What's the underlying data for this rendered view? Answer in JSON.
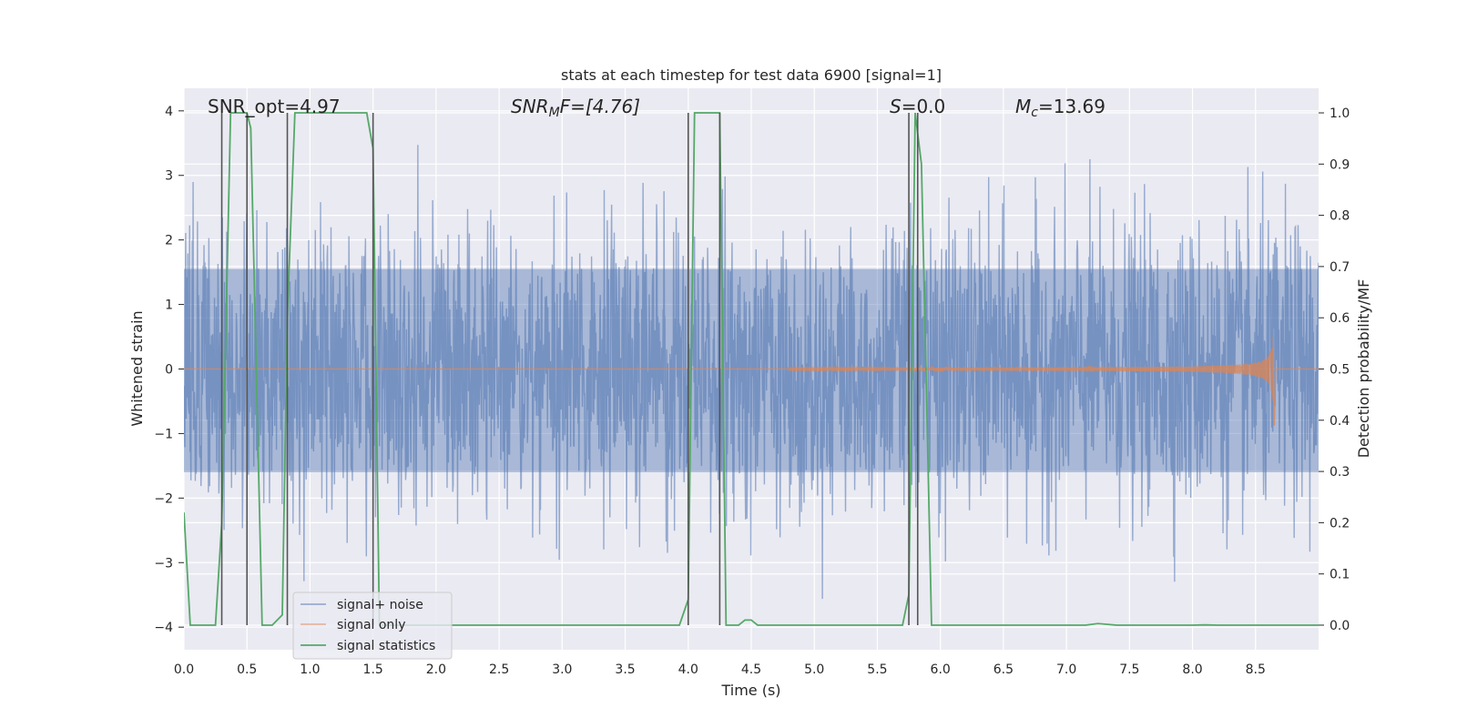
{
  "chart_data": {
    "type": "line",
    "title": "stats at each timestep for test data 6900 [signal=1]",
    "xlabel": "Time (s)",
    "ylabel": "Whitened strain",
    "y2label": "Detection probability/MF",
    "xlim": [
      0.0,
      9.0
    ],
    "ylim": [
      -4.35,
      4.35
    ],
    "y2lim": [
      -0.048,
      1.048
    ],
    "x_ticks": [
      0.0,
      0.5,
      1.0,
      1.5,
      2.0,
      2.5,
      3.0,
      3.5,
      4.0,
      4.5,
      5.0,
      5.5,
      6.0,
      6.5,
      7.0,
      7.5,
      8.0,
      8.5
    ],
    "x_tick_labels": [
      "0.0",
      "0.5",
      "1.0",
      "1.5",
      "2.0",
      "2.5",
      "3.0",
      "3.5",
      "4.0",
      "4.5",
      "5.0",
      "5.5",
      "6.0",
      "6.5",
      "7.0",
      "7.5",
      "8.0",
      "8.5"
    ],
    "y_ticks": [
      -4,
      -3,
      -2,
      -1,
      0,
      1,
      2,
      3,
      4
    ],
    "y_tick_labels": [
      "−4",
      "−3",
      "−2",
      "−1",
      "0",
      "1",
      "2",
      "3",
      "4"
    ],
    "y2_ticks": [
      0.0,
      0.1,
      0.2,
      0.3,
      0.4,
      0.5,
      0.6,
      0.7,
      0.8,
      0.9,
      1.0
    ],
    "y2_tick_labels": [
      "0.0",
      "0.1",
      "0.2",
      "0.3",
      "0.4",
      "0.5",
      "0.6",
      "0.7",
      "0.8",
      "0.9",
      "1.0"
    ],
    "grid": true,
    "legend": {
      "location": "lower-left",
      "entries": [
        "signal+ noise",
        "signal only",
        "signal statistics"
      ]
    },
    "annotations": {
      "snr_opt": "SNR_opt=4.97",
      "snr_mf_main": "SNR",
      "snr_mf_sub": "M",
      "snr_mf_rest": "F=[4.76]",
      "s_main": "S",
      "s_rest": "=0.0",
      "mc_main": "M",
      "mc_sub": "c",
      "mc_rest": "=13.69"
    },
    "series": [
      {
        "name": "signal+ noise",
        "color": "#4c72b0",
        "kind": "noise",
        "x_range": [
          0.0,
          9.0
        ],
        "typical_amplitude": 2.3,
        "peak_amplitude": 3.9
      },
      {
        "name": "signal only",
        "color": "#dd8452",
        "kind": "chirp",
        "start_time": 4.8,
        "merger_time": 8.65,
        "peak_amplitude": 0.9,
        "peak_amplitude_neg": -1.0
      },
      {
        "name": "signal statistics",
        "color": "#55a868",
        "x": [
          0.0,
          0.05,
          0.25,
          0.3,
          0.37,
          0.5,
          0.53,
          0.62,
          0.7,
          0.78,
          0.82,
          0.88,
          0.95,
          1.3,
          1.45,
          1.5,
          1.55,
          2.0,
          3.0,
          3.93,
          4.0,
          4.05,
          4.25,
          4.3,
          4.4,
          4.45,
          4.5,
          4.55,
          4.9,
          5.5,
          5.7,
          5.75,
          5.8,
          5.85,
          5.93,
          6.0,
          6.5,
          7.15,
          7.25,
          7.4,
          8.0,
          8.1,
          8.2,
          9.0
        ],
        "y": [
          0.22,
          0.0,
          0.0,
          0.2,
          1.0,
          1.0,
          0.97,
          0.0,
          0.0,
          0.02,
          0.6,
          1.0,
          1.0,
          1.0,
          1.0,
          0.93,
          0.0,
          0.0,
          0.0,
          0.0,
          0.05,
          1.0,
          1.0,
          0.0,
          0.0,
          0.01,
          0.01,
          0.0,
          0.0,
          0.0,
          0.0,
          0.06,
          1.0,
          0.9,
          0.0,
          0.0,
          0.0,
          0.0,
          0.003,
          0.0,
          0.0,
          0.0005,
          0.0,
          0.0
        ]
      },
      {
        "name": "detection boundaries",
        "color": "#555555",
        "kind": "vlines",
        "x": [
          0.3,
          0.5,
          0.82,
          1.5,
          4.0,
          4.25,
          5.75,
          5.82
        ],
        "y2_range": [
          0.0,
          1.0
        ]
      }
    ]
  }
}
